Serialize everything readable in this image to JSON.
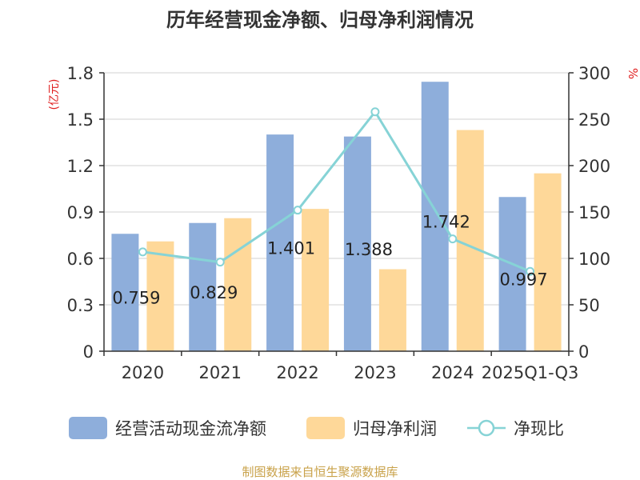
{
  "chart_data": {
    "type": "bar",
    "title": "历年经营现金净额、归母净利润情况",
    "categories": [
      "2020",
      "2021",
      "2022",
      "2023",
      "2024",
      "2025Q1-Q3"
    ],
    "series": [
      {
        "name": "经营活动现金流净额",
        "kind": "bar",
        "axis": "left",
        "color": "#8eaedb",
        "values": [
          0.759,
          0.829,
          1.401,
          1.388,
          1.742,
          0.997
        ]
      },
      {
        "name": "归母净利润",
        "kind": "bar",
        "axis": "left",
        "color": "#fed899",
        "values": [
          0.71,
          0.86,
          0.92,
          0.53,
          1.43,
          1.15
        ]
      },
      {
        "name": "净现比",
        "kind": "line",
        "axis": "right",
        "color": "#86d3d6",
        "values": [
          107,
          96,
          152,
          258,
          121,
          86
        ]
      }
    ],
    "data_labels": [
      "0.759",
      "0.829",
      "1.401",
      "1.388",
      "1.742",
      "0.997"
    ],
    "y_left": {
      "unit": "(亿元)",
      "ticks": [
        "0",
        "0.3",
        "0.6",
        "0.9",
        "1.2",
        "1.5",
        "1.8"
      ],
      "min": 0,
      "max": 1.8
    },
    "y_right": {
      "unit": "%",
      "ticks": [
        "0",
        "50",
        "100",
        "150",
        "200",
        "250",
        "300"
      ],
      "min": 0,
      "max": 300
    },
    "grid": true,
    "legend_position": "bottom"
  },
  "source": "制图数据来自恒生聚源数据库"
}
